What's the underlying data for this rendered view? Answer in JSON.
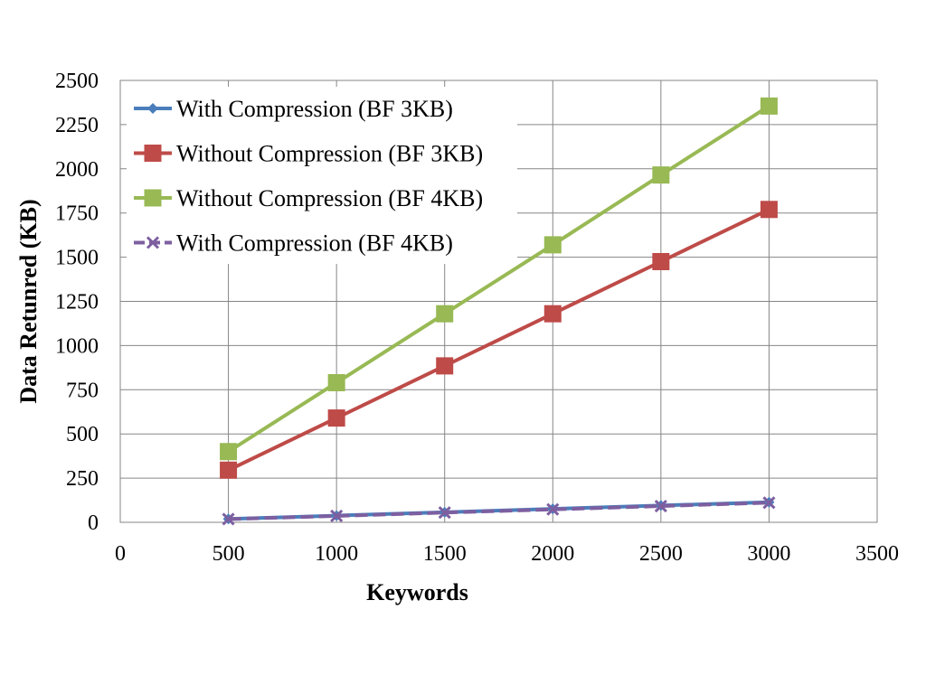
{
  "chart_data": {
    "type": "line",
    "title": "",
    "xlabel": "Keywords",
    "ylabel": "Data Retunred (KB)",
    "xlim": [
      0,
      3500
    ],
    "ylim": [
      0,
      2500
    ],
    "xticks": [
      0,
      500,
      1000,
      1500,
      2000,
      2500,
      3000,
      3500
    ],
    "yticks": [
      0,
      250,
      500,
      750,
      1000,
      1250,
      1500,
      1750,
      2000,
      2250,
      2500
    ],
    "grid": true,
    "legend_position": "top-left",
    "x": [
      500,
      1000,
      1500,
      2000,
      2500,
      3000
    ],
    "series": [
      {
        "name": "With Compression (BF 3KB)",
        "values": [
          19,
          38,
          57,
          76,
          95,
          114
        ],
        "color": "#4a7ebb",
        "marker": "diamond",
        "dash": "solid"
      },
      {
        "name": "Without Compression (BF 3KB)",
        "values": [
          295,
          590,
          885,
          1180,
          1475,
          1770
        ],
        "color": "#be4b48",
        "marker": "square",
        "dash": "solid"
      },
      {
        "name": "Without Compression (BF 4KB)",
        "values": [
          400,
          790,
          1180,
          1570,
          1965,
          2355
        ],
        "color": "#98b954",
        "marker": "square",
        "dash": "solid"
      },
      {
        "name": "With Compression (BF 4KB)",
        "values": [
          18,
          36,
          55,
          73,
          92,
          111
        ],
        "color": "#7d5fa0",
        "marker": "x",
        "dash": "dashed"
      }
    ]
  }
}
